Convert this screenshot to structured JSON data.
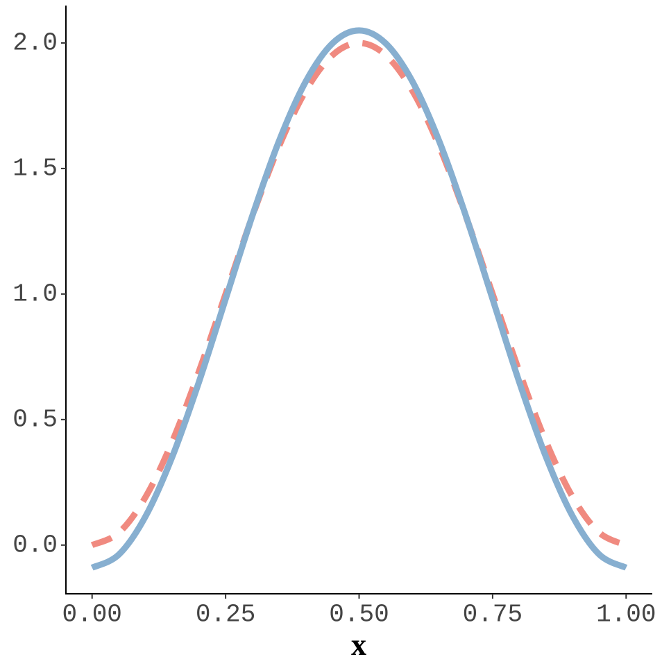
{
  "chart_data": {
    "type": "line",
    "x_label": "x",
    "x": [
      0,
      0.05,
      0.1,
      0.15,
      0.2,
      0.25,
      0.3,
      0.35,
      0.4,
      0.45,
      0.5,
      0.55,
      0.6,
      0.65,
      0.7,
      0.75,
      0.8,
      0.85,
      0.9,
      0.95,
      1
    ],
    "series": [
      {
        "color": "#f08a80",
        "dashed": true,
        "values": [
          0,
          0.049,
          0.191,
          0.412,
          0.691,
          1,
          1.309,
          1.588,
          1.809,
          1.951,
          2,
          1.951,
          1.809,
          1.588,
          1.309,
          1,
          0.691,
          0.412,
          0.191,
          0.049,
          0
        ]
      },
      {
        "color": "#87afd0",
        "dashed": false,
        "values": [
          -0.09,
          -0.038,
          0.114,
          0.351,
          0.649,
          0.98,
          1.311,
          1.609,
          1.846,
          1.998,
          2.05,
          1.998,
          1.846,
          1.609,
          1.311,
          0.98,
          0.649,
          0.351,
          0.114,
          -0.038,
          -0.09
        ]
      }
    ],
    "xlim": [
      -0.049,
      1.049
    ],
    "ylim": [
      -0.194,
      2.149
    ],
    "xticks": [
      {
        "value": 0,
        "label": "0.00"
      },
      {
        "value": 0.25,
        "label": "0.25"
      },
      {
        "value": 0.5,
        "label": "0.50"
      },
      {
        "value": 0.75,
        "label": "0.75"
      },
      {
        "value": 1,
        "label": "1.00"
      }
    ],
    "yticks": [
      {
        "value": 0,
        "label": "0.0"
      },
      {
        "value": 0.5,
        "label": "0.5"
      },
      {
        "value": 1,
        "label": "1.0"
      },
      {
        "value": 1.5,
        "label": "1.5"
      },
      {
        "value": 2,
        "label": "2.0"
      }
    ]
  }
}
